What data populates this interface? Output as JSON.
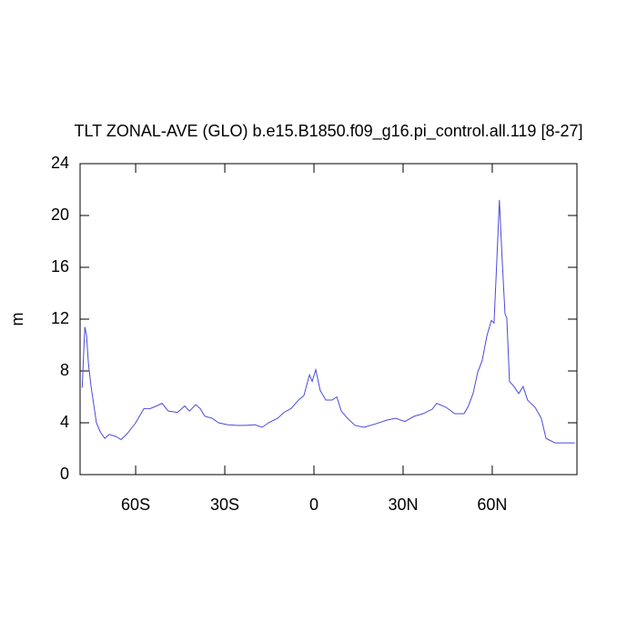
{
  "chart_data": {
    "type": "line",
    "title": "TLT ZONAL-AVE (GLO) b.e15.B1850.f09_g16.pi_control.all.119 [8-27]",
    "y_label": "m",
    "x": [
      -78,
      -77.1,
      -76.5,
      -75.9,
      -75,
      -74.1,
      -73.2,
      -71.9,
      -70.4,
      -68.9,
      -66.7,
      -64.9,
      -62.7,
      -60,
      -57.2,
      -55.1,
      -53,
      -51.1,
      -49,
      -45.9,
      -43.5,
      -41.9,
      -39.8,
      -38.3,
      -36.7,
      -34.3,
      -32.1,
      -29.1,
      -26,
      -23,
      -19.9,
      -17.4,
      -15.3,
      -12.2,
      -10.1,
      -7.7,
      -5.2,
      -3.4,
      -1.5,
      -0.6,
      0.6,
      2.1,
      4,
      6.1,
      7.7,
      9.2,
      11.3,
      13.8,
      16.8,
      20.5,
      24.5,
      27.5,
      30.6,
      33.7,
      36.7,
      39.8,
      41.3,
      44.4,
      47.4,
      50.5,
      52,
      53.6,
      55.1,
      56.6,
      58.2,
      59.7,
      60.6,
      61.5,
      62.4,
      63.4,
      64.3,
      64.9,
      65.8,
      67.3,
      68.9,
      70.4,
      71.9,
      74.4,
      76.5,
      78.1,
      81.1,
      84.2,
      87.8
    ],
    "series": [
      {
        "color": "#4a4adc",
        "values": [
          6.7,
          11.4,
          10.7,
          8.6,
          6.8,
          5.4,
          4.0,
          3.3,
          2.8,
          3.1,
          2.95,
          2.7,
          3.2,
          4.0,
          5.1,
          5.1,
          5.3,
          5.5,
          4.9,
          4.8,
          5.3,
          4.9,
          5.4,
          5.1,
          4.5,
          4.35,
          4.0,
          3.85,
          3.8,
          3.8,
          3.85,
          3.65,
          4.0,
          4.35,
          4.8,
          5.1,
          5.75,
          6.1,
          7.7,
          7.2,
          8.1,
          6.5,
          5.75,
          5.75,
          6.0,
          4.9,
          4.35,
          3.8,
          3.65,
          3.9,
          4.2,
          4.35,
          4.1,
          4.5,
          4.7,
          5.05,
          5.5,
          5.2,
          4.7,
          4.7,
          5.3,
          6.3,
          7.9,
          8.8,
          10.7,
          11.9,
          11.7,
          16.3,
          21.2,
          16.3,
          12.4,
          12.1,
          7.2,
          6.8,
          6.25,
          6.8,
          5.75,
          5.2,
          4.35,
          2.8,
          2.45,
          2.45,
          2.45
        ]
      }
    ],
    "xlim": [
      -78.7,
      88.5
    ],
    "xticks": [
      {
        "value": -60,
        "label": "60S"
      },
      {
        "value": -30,
        "label": "30S"
      },
      0,
      {
        "value": 30,
        "label": "30N"
      },
      {
        "value": 60,
        "label": "60N"
      }
    ],
    "ylim": [
      0,
      24
    ],
    "yticks": [
      0,
      4,
      8,
      12,
      16,
      20,
      24
    ]
  }
}
